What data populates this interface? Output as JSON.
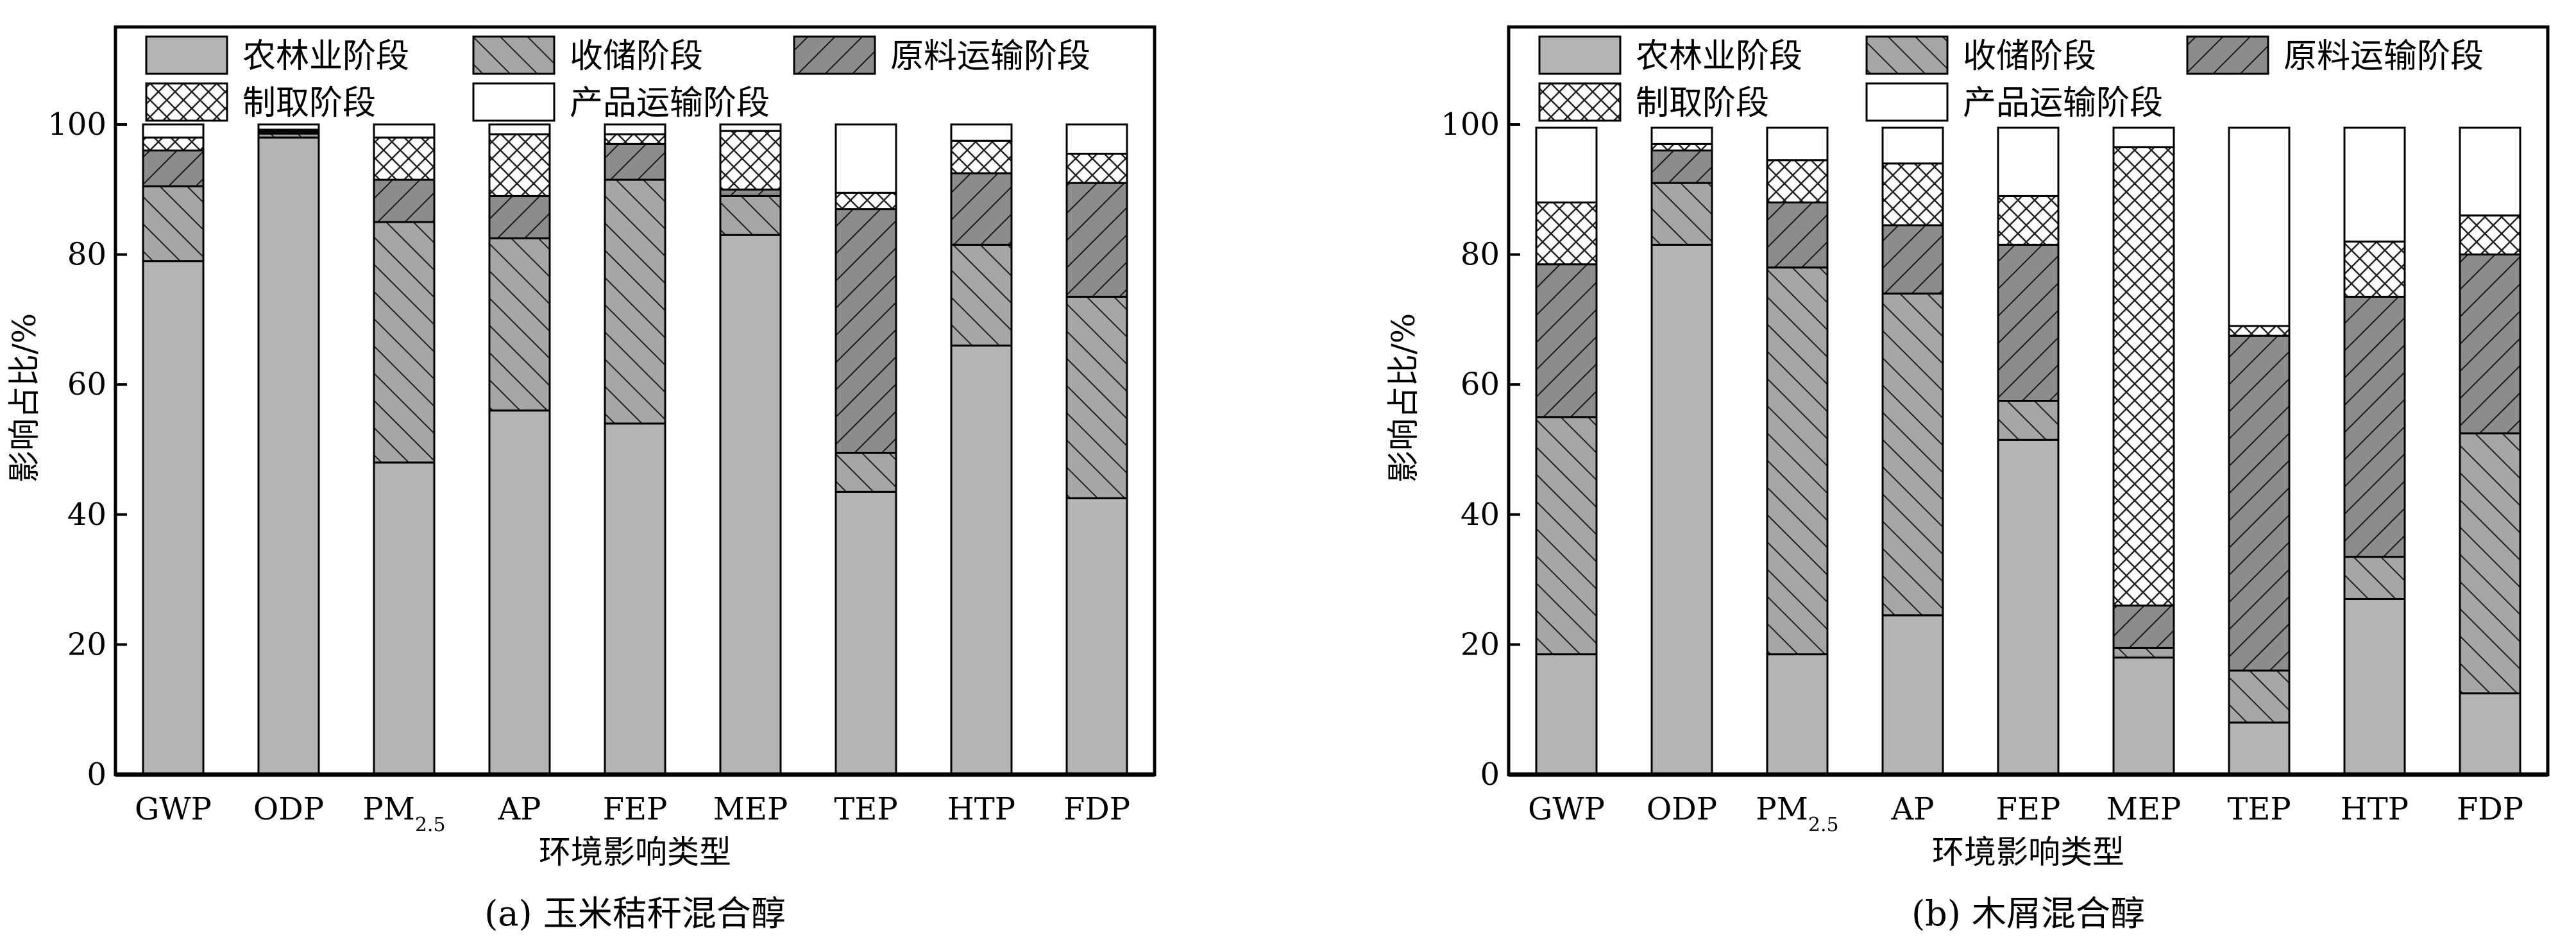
{
  "stage_order": [
    "farming",
    "storage",
    "feedstock_transport",
    "production",
    "product_transport"
  ],
  "legend": {
    "farming": "农林业阶段",
    "storage": "收储阶段",
    "feedstock_transport": "原料运输阶段",
    "production": "制取阶段",
    "product_transport": "产品运输阶段"
  },
  "colors": {
    "farming": "#b4b4b4",
    "storage": "#a6a6a6",
    "feedstock_transport": "#8c8c8c",
    "production": "#ffffff",
    "product_transport": "#ffffff"
  },
  "chart_data": [
    {
      "type": "bar",
      "stacked": true,
      "caption": "(a) 玉米秸秆混合醇",
      "xlabel": "环境影响类型",
      "ylabel": "影响占比/%",
      "ylim": [
        0,
        115
      ],
      "yticks": [
        0,
        20,
        40,
        60,
        80,
        100
      ],
      "categories": [
        "GWP",
        "ODP",
        "PM2.5",
        "AP",
        "FEP",
        "MEP",
        "TEP",
        "HTP",
        "FDP"
      ],
      "series": [
        {
          "name": "农林业阶段",
          "key": "farming",
          "values": [
            79,
            98,
            48,
            56,
            54,
            83,
            43.5,
            66,
            42.5
          ]
        },
        {
          "name": "收储阶段",
          "key": "storage",
          "values": [
            11.5,
            0.6,
            37,
            26.5,
            37.5,
            6,
            6,
            15.5,
            31
          ]
        },
        {
          "name": "原料运输阶段",
          "key": "feedstock_transport",
          "values": [
            5.5,
            0.3,
            6.5,
            6.5,
            5.5,
            1,
            37.5,
            11,
            17.5
          ]
        },
        {
          "name": "制取阶段",
          "key": "production",
          "values": [
            2,
            0.3,
            6.5,
            9.5,
            1.5,
            9,
            2.5,
            5,
            4.5
          ]
        },
        {
          "name": "产品运输阶段",
          "key": "product_transport",
          "values": [
            2,
            0.8,
            2,
            1.5,
            1.5,
            1,
            10.5,
            2.5,
            4.5
          ]
        }
      ]
    },
    {
      "type": "bar",
      "stacked": true,
      "caption": "(b) 木屑混合醇",
      "xlabel": "环境影响类型",
      "ylabel": "影响占比/%",
      "ylim": [
        0,
        115
      ],
      "yticks": [
        0,
        20,
        40,
        60,
        80,
        100
      ],
      "categories": [
        "GWP",
        "ODP",
        "PM2.5",
        "AP",
        "FEP",
        "MEP",
        "TEP",
        "HTP",
        "FDP"
      ],
      "series": [
        {
          "name": "农林业阶段",
          "key": "farming",
          "values": [
            18.5,
            81.5,
            18.5,
            24.5,
            51.5,
            18,
            8,
            27,
            12.5
          ]
        },
        {
          "name": "收储阶段",
          "key": "storage",
          "values": [
            36.5,
            9.5,
            59.5,
            49.5,
            6,
            1.5,
            8,
            6.5,
            40
          ]
        },
        {
          "name": "原料运输阶段",
          "key": "feedstock_transport",
          "values": [
            23.5,
            5,
            10,
            10.5,
            24,
            6.5,
            51.5,
            40,
            27.5
          ]
        },
        {
          "name": "制取阶段",
          "key": "production",
          "values": [
            9.5,
            1,
            6.5,
            9.5,
            7.5,
            70.5,
            1.5,
            8.5,
            6
          ]
        },
        {
          "name": "产品运输阶段",
          "key": "product_transport",
          "values": [
            11.5,
            2.5,
            5,
            5.5,
            10.5,
            3,
            30.5,
            17.5,
            13.5
          ]
        }
      ]
    }
  ]
}
